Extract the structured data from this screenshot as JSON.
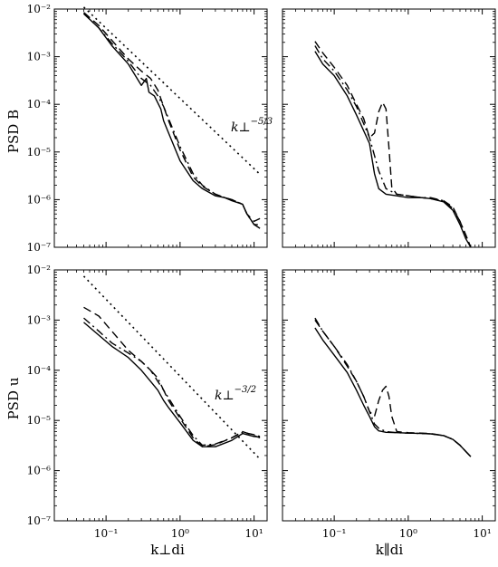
{
  "figure": {
    "ylabel_top": "PSD B",
    "ylabel_bottom": "PSD u",
    "xlabel_left": "k⊥di",
    "xlabel_right": "k∥di"
  },
  "chart_data": [
    {
      "type": "line",
      "panel": "top-left",
      "xscale": "log",
      "yscale": "log",
      "xlim": [
        0.02,
        15
      ],
      "ylim": [
        1e-07,
        0.01
      ],
      "ylabel": "PSD B",
      "xlabel": "",
      "series": [
        {
          "style": "solid",
          "x": [
            0.05,
            0.08,
            0.12,
            0.2,
            0.3,
            0.35,
            0.38,
            0.45,
            0.55,
            0.6,
            0.7,
            1,
            1.5,
            2,
            3,
            4,
            5,
            7,
            8,
            10,
            12
          ],
          "y": [
            0.008,
            0.004,
            0.0017,
            0.0007,
            0.00025,
            0.00035,
            0.00018,
            0.00015,
            8e-05,
            4.5e-05,
            2.5e-05,
            6.5e-06,
            2.5e-06,
            1.7e-06,
            1.2e-06,
            1.1e-06,
            9.5e-07,
            8e-07,
            5e-07,
            3e-07,
            2.5e-07
          ]
        },
        {
          "style": "dashed",
          "x": [
            0.05,
            0.08,
            0.12,
            0.2,
            0.3,
            0.4,
            0.5,
            0.6,
            0.7,
            1,
            1.5,
            2,
            3,
            4,
            5,
            7,
            8,
            10,
            12
          ],
          "y": [
            0.0085,
            0.0045,
            0.0022,
            0.0009,
            0.0005,
            0.00035,
            0.0002,
            9e-05,
            4.5e-05,
            1.1e-05,
            3e-06,
            1.9e-06,
            1.3e-06,
            1.1e-06,
            1e-06,
            8e-07,
            5e-07,
            3.5e-07,
            4e-07
          ]
        },
        {
          "style": "dashdot",
          "x": [
            0.05,
            0.08,
            0.12,
            0.2,
            0.3,
            0.4,
            0.5,
            0.6,
            0.7,
            1,
            1.5,
            2,
            3,
            4,
            5,
            7,
            8,
            10,
            12
          ],
          "y": [
            0.008,
            0.004,
            0.0019,
            0.0008,
            0.00035,
            0.00025,
            0.00015,
            9e-05,
            5e-05,
            1.3e-05,
            3.5e-06,
            2e-06,
            1.3e-06,
            1.1e-06,
            1e-06,
            8e-07,
            5e-07,
            3e-07,
            3e-07
          ]
        },
        {
          "style": "dotted",
          "x": [
            0.05,
            12
          ],
          "y": [
            0.011,
            3.4e-06
          ]
        }
      ],
      "annotations": [
        {
          "text": "k⊥",
          "sup": "−5/3"
        }
      ]
    },
    {
      "type": "line",
      "panel": "top-right",
      "xscale": "log",
      "yscale": "log",
      "xlim": [
        0.02,
        15
      ],
      "ylim": [
        1e-07,
        0.01
      ],
      "xlabel": "",
      "ylabel": "",
      "series": [
        {
          "style": "solid",
          "x": [
            0.055,
            0.07,
            0.1,
            0.15,
            0.2,
            0.3,
            0.35,
            0.4,
            0.5,
            0.7,
            1,
            1.5,
            2,
            3,
            4,
            5,
            6,
            7
          ],
          "y": [
            0.0013,
            0.0007,
            0.0004,
            0.00015,
            6e-05,
            1.5e-05,
            3.5e-06,
            1.7e-06,
            1.3e-06,
            1.2e-06,
            1.1e-06,
            1.1e-06,
            1.05e-06,
            9e-07,
            6e-07,
            3e-07,
            1.5e-07,
            1e-07
          ]
        },
        {
          "style": "dashed",
          "x": [
            0.055,
            0.07,
            0.1,
            0.15,
            0.2,
            0.25,
            0.3,
            0.35,
            0.4,
            0.45,
            0.5,
            0.55,
            0.6,
            0.7,
            1,
            1.5,
            2,
            3,
            4,
            5,
            6,
            7
          ],
          "y": [
            0.0021,
            0.0012,
            0.0006,
            0.00025,
            0.0001,
            5e-05,
            2e-05,
            2.5e-05,
            7e-05,
            0.00011,
            8e-05,
            1.2e-05,
            1.8e-06,
            1.3e-06,
            1.2e-06,
            1.1e-06,
            1.05e-06,
            9.5e-07,
            7e-07,
            3.5e-07,
            1.8e-07,
            1e-07
          ]
        },
        {
          "style": "dashdot",
          "x": [
            0.055,
            0.07,
            0.1,
            0.15,
            0.2,
            0.3,
            0.4,
            0.5,
            0.7,
            1,
            1.5,
            2,
            3,
            4,
            5,
            6,
            7
          ],
          "y": [
            0.0017,
            0.0009,
            0.0005,
            0.0002,
            9e-05,
            2e-05,
            4e-06,
            1.7e-06,
            1.3e-06,
            1.2e-06,
            1.1e-06,
            1.1e-06,
            9.5e-07,
            6.5e-07,
            3.5e-07,
            1.8e-07,
            1e-07
          ]
        }
      ]
    },
    {
      "type": "line",
      "panel": "bottom-left",
      "xscale": "log",
      "yscale": "log",
      "xlim": [
        0.02,
        15
      ],
      "ylim": [
        1e-07,
        0.01
      ],
      "ylabel": "PSD u",
      "xlabel": "k⊥di",
      "series": [
        {
          "style": "solid",
          "x": [
            0.05,
            0.08,
            0.12,
            0.2,
            0.3,
            0.4,
            0.5,
            0.6,
            0.7,
            1,
            1.5,
            2,
            3,
            5,
            7,
            10,
            12
          ],
          "y": [
            0.0009,
            0.0005,
            0.0003,
            0.00018,
            0.0001,
            6e-05,
            4e-05,
            2.5e-05,
            1.8e-05,
            9e-06,
            4e-06,
            3e-06,
            3e-06,
            4e-06,
            5.5e-06,
            4.8e-06,
            4.7e-06
          ]
        },
        {
          "style": "dashed",
          "x": [
            0.05,
            0.08,
            0.12,
            0.2,
            0.3,
            0.4,
            0.5,
            0.6,
            0.7,
            1,
            1.5,
            2,
            3,
            5,
            7,
            10,
            12
          ],
          "y": [
            0.0018,
            0.0012,
            0.0006,
            0.00025,
            0.00015,
            0.0001,
            6e-05,
            4e-05,
            2.5e-05,
            1.1e-05,
            4.5e-06,
            3e-06,
            3.3e-06,
            4.5e-06,
            6e-06,
            5e-06,
            4.5e-06
          ]
        },
        {
          "style": "dashdot",
          "x": [
            0.05,
            0.08,
            0.12,
            0.2,
            0.3,
            0.4,
            0.5,
            0.6,
            0.7,
            1,
            1.5,
            2,
            3,
            5,
            7,
            10,
            12
          ],
          "y": [
            0.0011,
            0.0006,
            0.00035,
            0.00022,
            0.00015,
            0.0001,
            7e-05,
            4e-05,
            2.8e-05,
            1.2e-05,
            5e-06,
            3.2e-06,
            3.4e-06,
            4.5e-06,
            5.8e-06,
            5.2e-06,
            4.8e-06
          ]
        },
        {
          "style": "dotted",
          "x": [
            0.05,
            12
          ],
          "y": [
            0.0075,
            1.7e-06
          ]
        }
      ],
      "annotations": [
        {
          "text": "k⊥",
          "sup": "−3/2"
        }
      ]
    },
    {
      "type": "line",
      "panel": "bottom-right",
      "xscale": "log",
      "yscale": "log",
      "xlim": [
        0.02,
        15
      ],
      "ylim": [
        1e-07,
        0.01
      ],
      "xlabel": "k∥di",
      "ylabel": "",
      "series": [
        {
          "style": "solid",
          "x": [
            0.055,
            0.07,
            0.1,
            0.15,
            0.2,
            0.25,
            0.3,
            0.35,
            0.4,
            0.5,
            0.7,
            1,
            1.5,
            2,
            3,
            4,
            5,
            6,
            7
          ],
          "y": [
            0.0007,
            0.0004,
            0.0002,
            9e-05,
            4e-05,
            2e-05,
            1.2e-05,
            7.5e-06,
            6.2e-06,
            5.8e-06,
            5.7e-06,
            5.6e-06,
            5.5e-06,
            5.4e-06,
            5e-06,
            4.2e-06,
            3.2e-06,
            2.4e-06,
            1.9e-06
          ]
        },
        {
          "style": "dashed",
          "x": [
            0.055,
            0.07,
            0.1,
            0.15,
            0.2,
            0.25,
            0.3,
            0.35,
            0.4,
            0.45,
            0.5,
            0.55,
            0.6,
            0.7,
            1,
            1.5,
            2,
            3,
            4,
            5,
            6,
            7
          ],
          "y": [
            0.001,
            0.0006,
            0.0003,
            0.00012,
            6e-05,
            3e-05,
            1.5e-05,
            1.2e-05,
            2.5e-05,
            4e-05,
            4.8e-05,
            3e-05,
            1.2e-05,
            6e-06,
            5.7e-06,
            5.6e-06,
            5.5e-06,
            5e-06,
            4.2e-06,
            3.2e-06,
            2.4e-06,
            1.9e-06
          ]
        },
        {
          "style": "dashdot",
          "x": [
            0.055,
            0.07,
            0.1,
            0.15,
            0.2,
            0.25,
            0.3,
            0.35,
            0.4,
            0.5,
            0.7,
            1,
            1.5,
            2,
            3,
            4,
            5,
            6,
            7
          ],
          "y": [
            0.0011,
            0.0006,
            0.0003,
            0.00013,
            6e-05,
            3e-05,
            1.5e-05,
            8.5e-06,
            7e-06,
            6e-06,
            5.7e-06,
            5.6e-06,
            5.5e-06,
            5.4e-06,
            5e-06,
            4.2e-06,
            3.2e-06,
            2.4e-06,
            1.9e-06
          ]
        }
      ]
    }
  ]
}
